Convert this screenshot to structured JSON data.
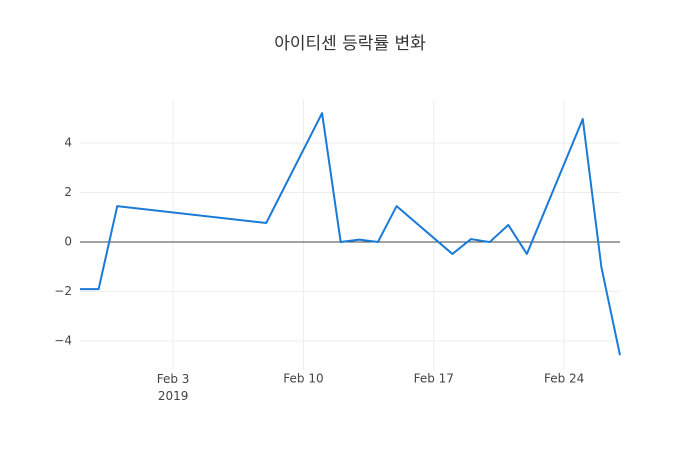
{
  "chart_data": {
    "type": "line",
    "title": "아이티센 등락률 변화",
    "x": [
      "2019-01-29",
      "2019-01-30",
      "2019-01-31",
      "2019-02-08",
      "2019-02-11",
      "2019-02-12",
      "2019-02-13",
      "2019-02-14",
      "2019-02-15",
      "2019-02-18",
      "2019-02-19",
      "2019-02-20",
      "2019-02-21",
      "2019-02-22",
      "2019-02-25",
      "2019-02-26",
      "2019-02-27"
    ],
    "series": [
      {
        "color": "#1a7ad8",
        "values": [
          -1.9,
          -1.9,
          1.45,
          0.77,
          5.21,
          0.0,
          0.1,
          0.0,
          1.45,
          -0.48,
          0.12,
          0.0,
          0.69,
          -0.48,
          4.97,
          -1.01,
          -4.57
        ]
      }
    ],
    "xlim": [
      "2019-01-29",
      "2019-02-27"
    ],
    "xticks": [
      {
        "value": "2019-02-03",
        "label": "Feb 3\n2019"
      },
      {
        "value": "2019-02-10",
        "label": "Feb 10"
      },
      {
        "value": "2019-02-17",
        "label": "Feb 17"
      },
      {
        "value": "2019-02-24",
        "label": "Feb 24"
      }
    ],
    "ylim": [
      -5.17,
      5.74
    ],
    "yticks": [
      {
        "value": -4,
        "label": "−4"
      },
      {
        "value": -2,
        "label": "−2"
      },
      0,
      2,
      4
    ],
    "grid": true,
    "zeroline": true
  }
}
